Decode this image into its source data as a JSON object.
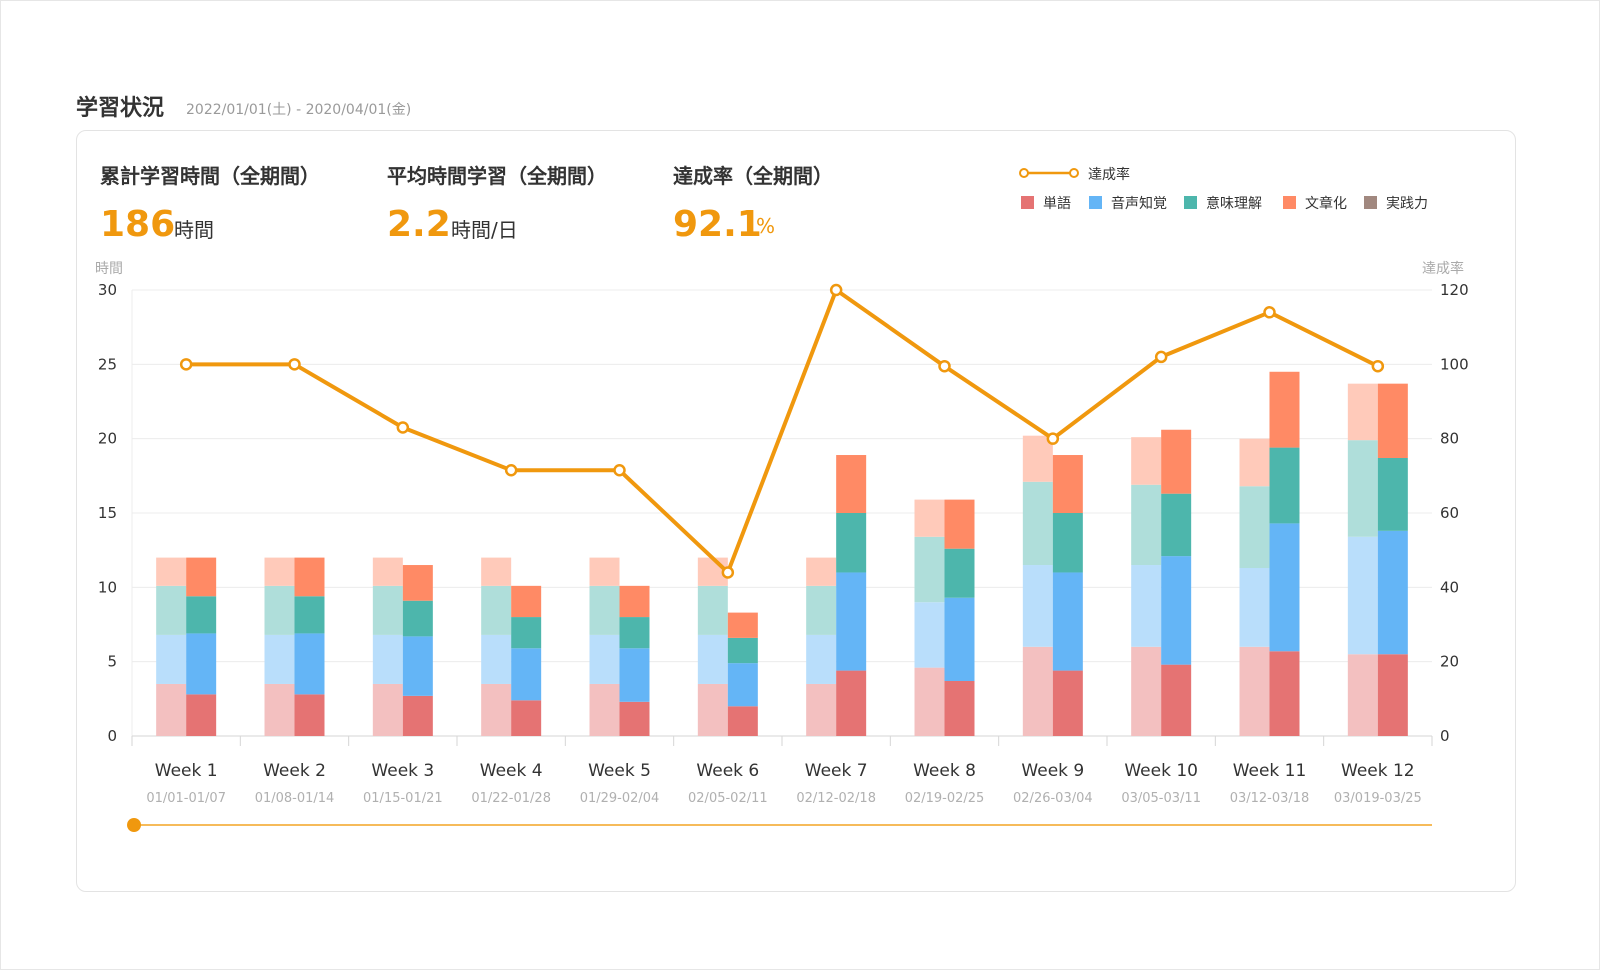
{
  "page": {
    "title": "学習状況",
    "date_range": "2022/01/01(土) - 2020/04/01(金)"
  },
  "stats": [
    {
      "label": "累計学習時間（全期間）",
      "value": "186",
      "unit": "時間"
    },
    {
      "label": "平均時間学習（全期間）",
      "value": "2.2",
      "unit": "時間/日"
    },
    {
      "label": "達成率（全期間）",
      "value": "92.1",
      "unit": "%"
    }
  ],
  "colors": {
    "accent": "#f0980e",
    "単語": "#e57373",
    "音声知覚": "#64b5f6",
    "意味理解": "#4db6ac",
    "文章化": "#ff8a65",
    "実践力": "#a1887f",
    "grid": "#ececec"
  },
  "chart_data": {
    "type": "bar",
    "y_left_label": "時間",
    "y_right_label": "達成率",
    "ylim_left": [
      0,
      30
    ],
    "yticks_left": [
      0,
      5,
      10,
      15,
      20,
      25,
      30
    ],
    "ylim_right": [
      0,
      120
    ],
    "yticks_right": [
      0,
      20,
      40,
      60,
      80,
      100,
      120
    ],
    "grid": true,
    "legend_position": "top-right",
    "legend_line": "達成率",
    "legend_bars": [
      "単語",
      "音声知覚",
      "意味理解",
      "文章化",
      "実践力"
    ],
    "categories": [
      "Week 1",
      "Week 2",
      "Week 3",
      "Week 4",
      "Week 5",
      "Week 6",
      "Week 7",
      "Week 8",
      "Week 9",
      "Week 10",
      "Week 11",
      "Week 12"
    ],
    "category_dates": [
      "01/01-01/07",
      "01/08-01/14",
      "01/15-01/21",
      "01/22-01/28",
      "01/29-02/04",
      "02/05-02/11",
      "02/12-02/18",
      "02/19-02/25",
      "02/26-03/04",
      "03/05-03/11",
      "03/12-03/18",
      "03/019-03/25"
    ],
    "target_series": [
      {
        "name": "単語",
        "values": [
          3.5,
          3.5,
          3.5,
          3.5,
          3.5,
          3.5,
          3.5,
          4.6,
          6.0,
          6.0,
          6.0,
          5.5
        ]
      },
      {
        "name": "音声知覚",
        "values": [
          3.3,
          3.3,
          3.3,
          3.3,
          3.3,
          3.3,
          3.3,
          4.4,
          5.5,
          5.5,
          5.3,
          7.9
        ]
      },
      {
        "name": "意味理解",
        "values": [
          3.3,
          3.3,
          3.3,
          3.3,
          3.3,
          3.3,
          3.3,
          4.4,
          5.6,
          5.4,
          5.5,
          6.5
        ]
      },
      {
        "name": "文章化",
        "values": [
          1.9,
          1.9,
          1.9,
          1.9,
          1.9,
          1.9,
          1.9,
          2.5,
          3.1,
          3.2,
          3.2,
          3.8
        ]
      },
      {
        "name": "実践力",
        "values": [
          0,
          0,
          0,
          0,
          0,
          0,
          0,
          0,
          0,
          0,
          0,
          0
        ]
      }
    ],
    "actual_series": [
      {
        "name": "単語",
        "values": [
          2.8,
          2.8,
          2.7,
          2.4,
          2.3,
          2.0,
          4.4,
          3.7,
          4.4,
          4.8,
          5.7,
          5.5
        ]
      },
      {
        "name": "音声知覚",
        "values": [
          4.1,
          4.1,
          4.0,
          3.5,
          3.6,
          2.9,
          6.6,
          5.6,
          6.6,
          7.3,
          8.6,
          8.3
        ]
      },
      {
        "name": "意味理解",
        "values": [
          2.5,
          2.5,
          2.4,
          2.1,
          2.1,
          1.7,
          4.0,
          3.3,
          4.0,
          4.2,
          5.1,
          4.9
        ]
      },
      {
        "name": "文章化",
        "values": [
          2.6,
          2.6,
          2.4,
          2.1,
          2.1,
          1.7,
          3.9,
          3.3,
          3.9,
          4.3,
          5.1,
          5.0
        ]
      },
      {
        "name": "実践力",
        "values": [
          0,
          0,
          0,
          0,
          0,
          0,
          0,
          0,
          0,
          0,
          0,
          0
        ]
      }
    ],
    "line_series": {
      "name": "達成率",
      "values": [
        100,
        100,
        83,
        71.5,
        71.5,
        44,
        120,
        99.5,
        80,
        102,
        114,
        99.5
      ]
    }
  }
}
